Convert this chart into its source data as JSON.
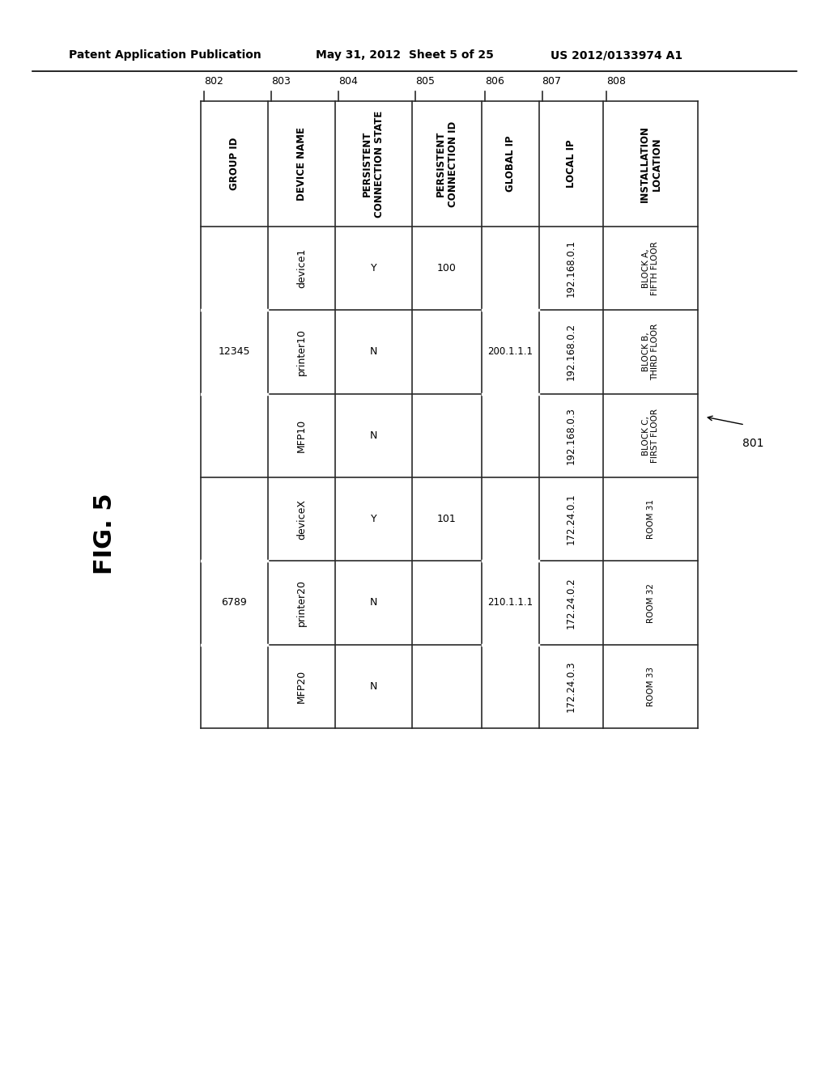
{
  "header_line1": "Patent Application Publication",
  "header_date": "May 31, 2012",
  "header_sheet": "Sheet 5 of 25",
  "header_patent": "US 2012/0133974 A1",
  "fig_label": "FIG. 5",
  "table_ref": "801",
  "col_labels": [
    "802",
    "803",
    "804",
    "805",
    "806",
    "807",
    "808"
  ],
  "col_headers": [
    "GROUP ID",
    "DEVICE NAME",
    "PERSISTENT\nCONNECTION STATE",
    "PERSISTENT\nCONNECTION ID",
    "GLOBAL IP",
    "LOCAL IP",
    "INSTALLATION\nLOCATION"
  ],
  "device_names": [
    "device1",
    "printer10",
    "MFP10",
    "deviceX",
    "printer20",
    "MFP20"
  ],
  "group_ids": [
    "12345",
    "",
    "",
    "6789",
    "",
    ""
  ],
  "conn_states": [
    "Y",
    "N",
    "N",
    "Y",
    "N",
    "N"
  ],
  "conn_ids": [
    "100",
    "",
    "",
    "101",
    "",
    ""
  ],
  "global_ips": [
    "200.1.1.1",
    "",
    "",
    "210.1.1.1",
    "",
    ""
  ],
  "local_ips": [
    "192.168.0.1",
    "192.168.0.2",
    "192.168.0.3",
    "172.24.0.1",
    "172.24.0.2",
    "172.24.0.3"
  ],
  "install_locs": [
    "BLOCK A,\nFIFTH FLOOR",
    "BLOCK B,\nTHIRD FLOOR",
    "BLOCK C,\nFIRST FLOOR",
    "ROOM 31",
    "ROOM 32",
    "ROOM 33"
  ],
  "bg_color": "#ffffff",
  "line_color": "#2a2a2a",
  "text_color": "#000000",
  "header_fontsize": 8.5,
  "data_fontsize": 9.0,
  "label_fontsize": 9.0
}
